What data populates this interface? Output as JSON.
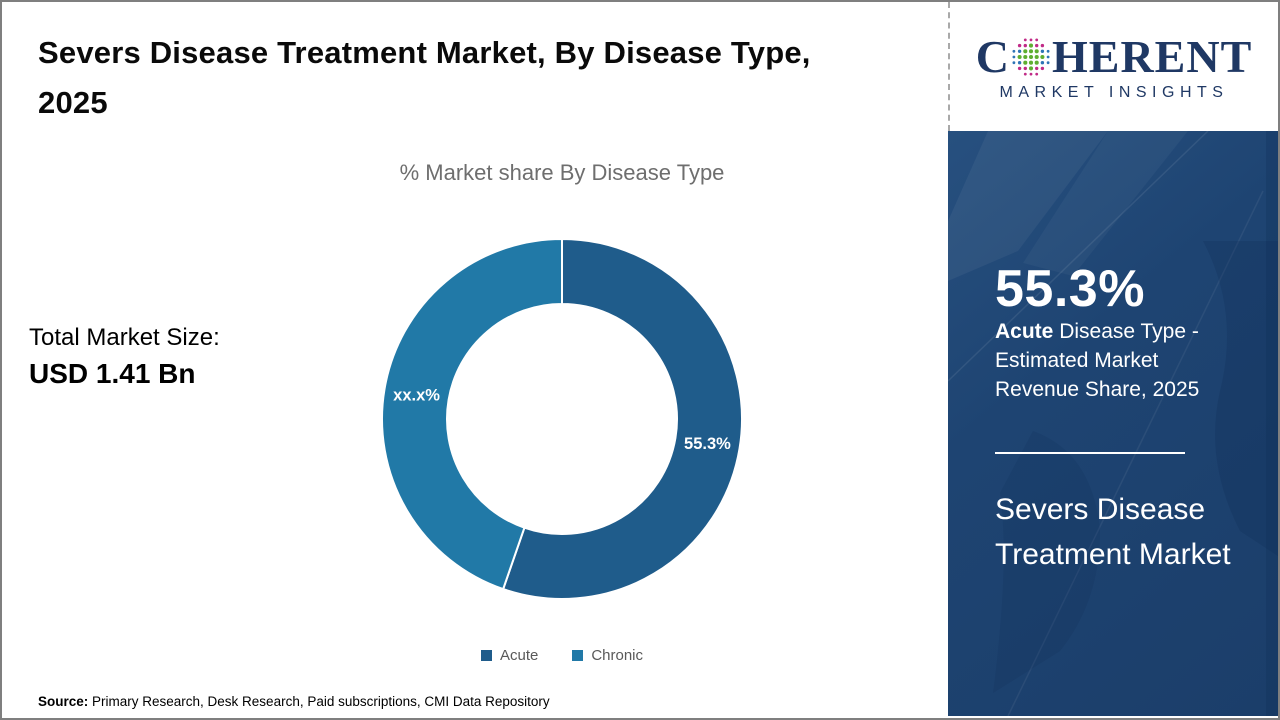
{
  "header": {
    "title": "Severs Disease Treatment Market, By Disease Type, 2025"
  },
  "logo": {
    "word_start": "C",
    "word_end": "HERENT",
    "tagline": "MARKET INSIGHTS",
    "text_color": "#1F3864",
    "globe_colors": {
      "green": "#5FAE31",
      "magenta": "#C12B87",
      "blue": "#2E75B6"
    }
  },
  "chart": {
    "subtitle": "% Market share By Disease Type"
  },
  "total_market": {
    "label": "Total Market Size:",
    "value": "USD 1.41 Bn"
  },
  "chart_data": {
    "type": "pie",
    "donut": true,
    "title": "% Market share By Disease Type",
    "categories": [
      "Acute",
      "Chronic"
    ],
    "values": [
      55.3,
      44.7
    ],
    "display_labels": [
      "55.3%",
      "xx.x%"
    ],
    "colors": [
      "#1F5C8B",
      "#2179A7"
    ],
    "start_angle_deg": 0,
    "direction": "clockwise",
    "legend_position": "bottom"
  },
  "sidebar": {
    "background": "#1D4370",
    "stat_value": "55.3%",
    "stat_bold": "Acute",
    "stat_rest": " Disease Type - Estimated Market Revenue Share, 2025",
    "market_name": "Severs Disease Treatment Market"
  },
  "source": {
    "label": "Source:",
    "text": " Primary Research, Desk Research, Paid subscriptions, CMI Data Repository"
  }
}
